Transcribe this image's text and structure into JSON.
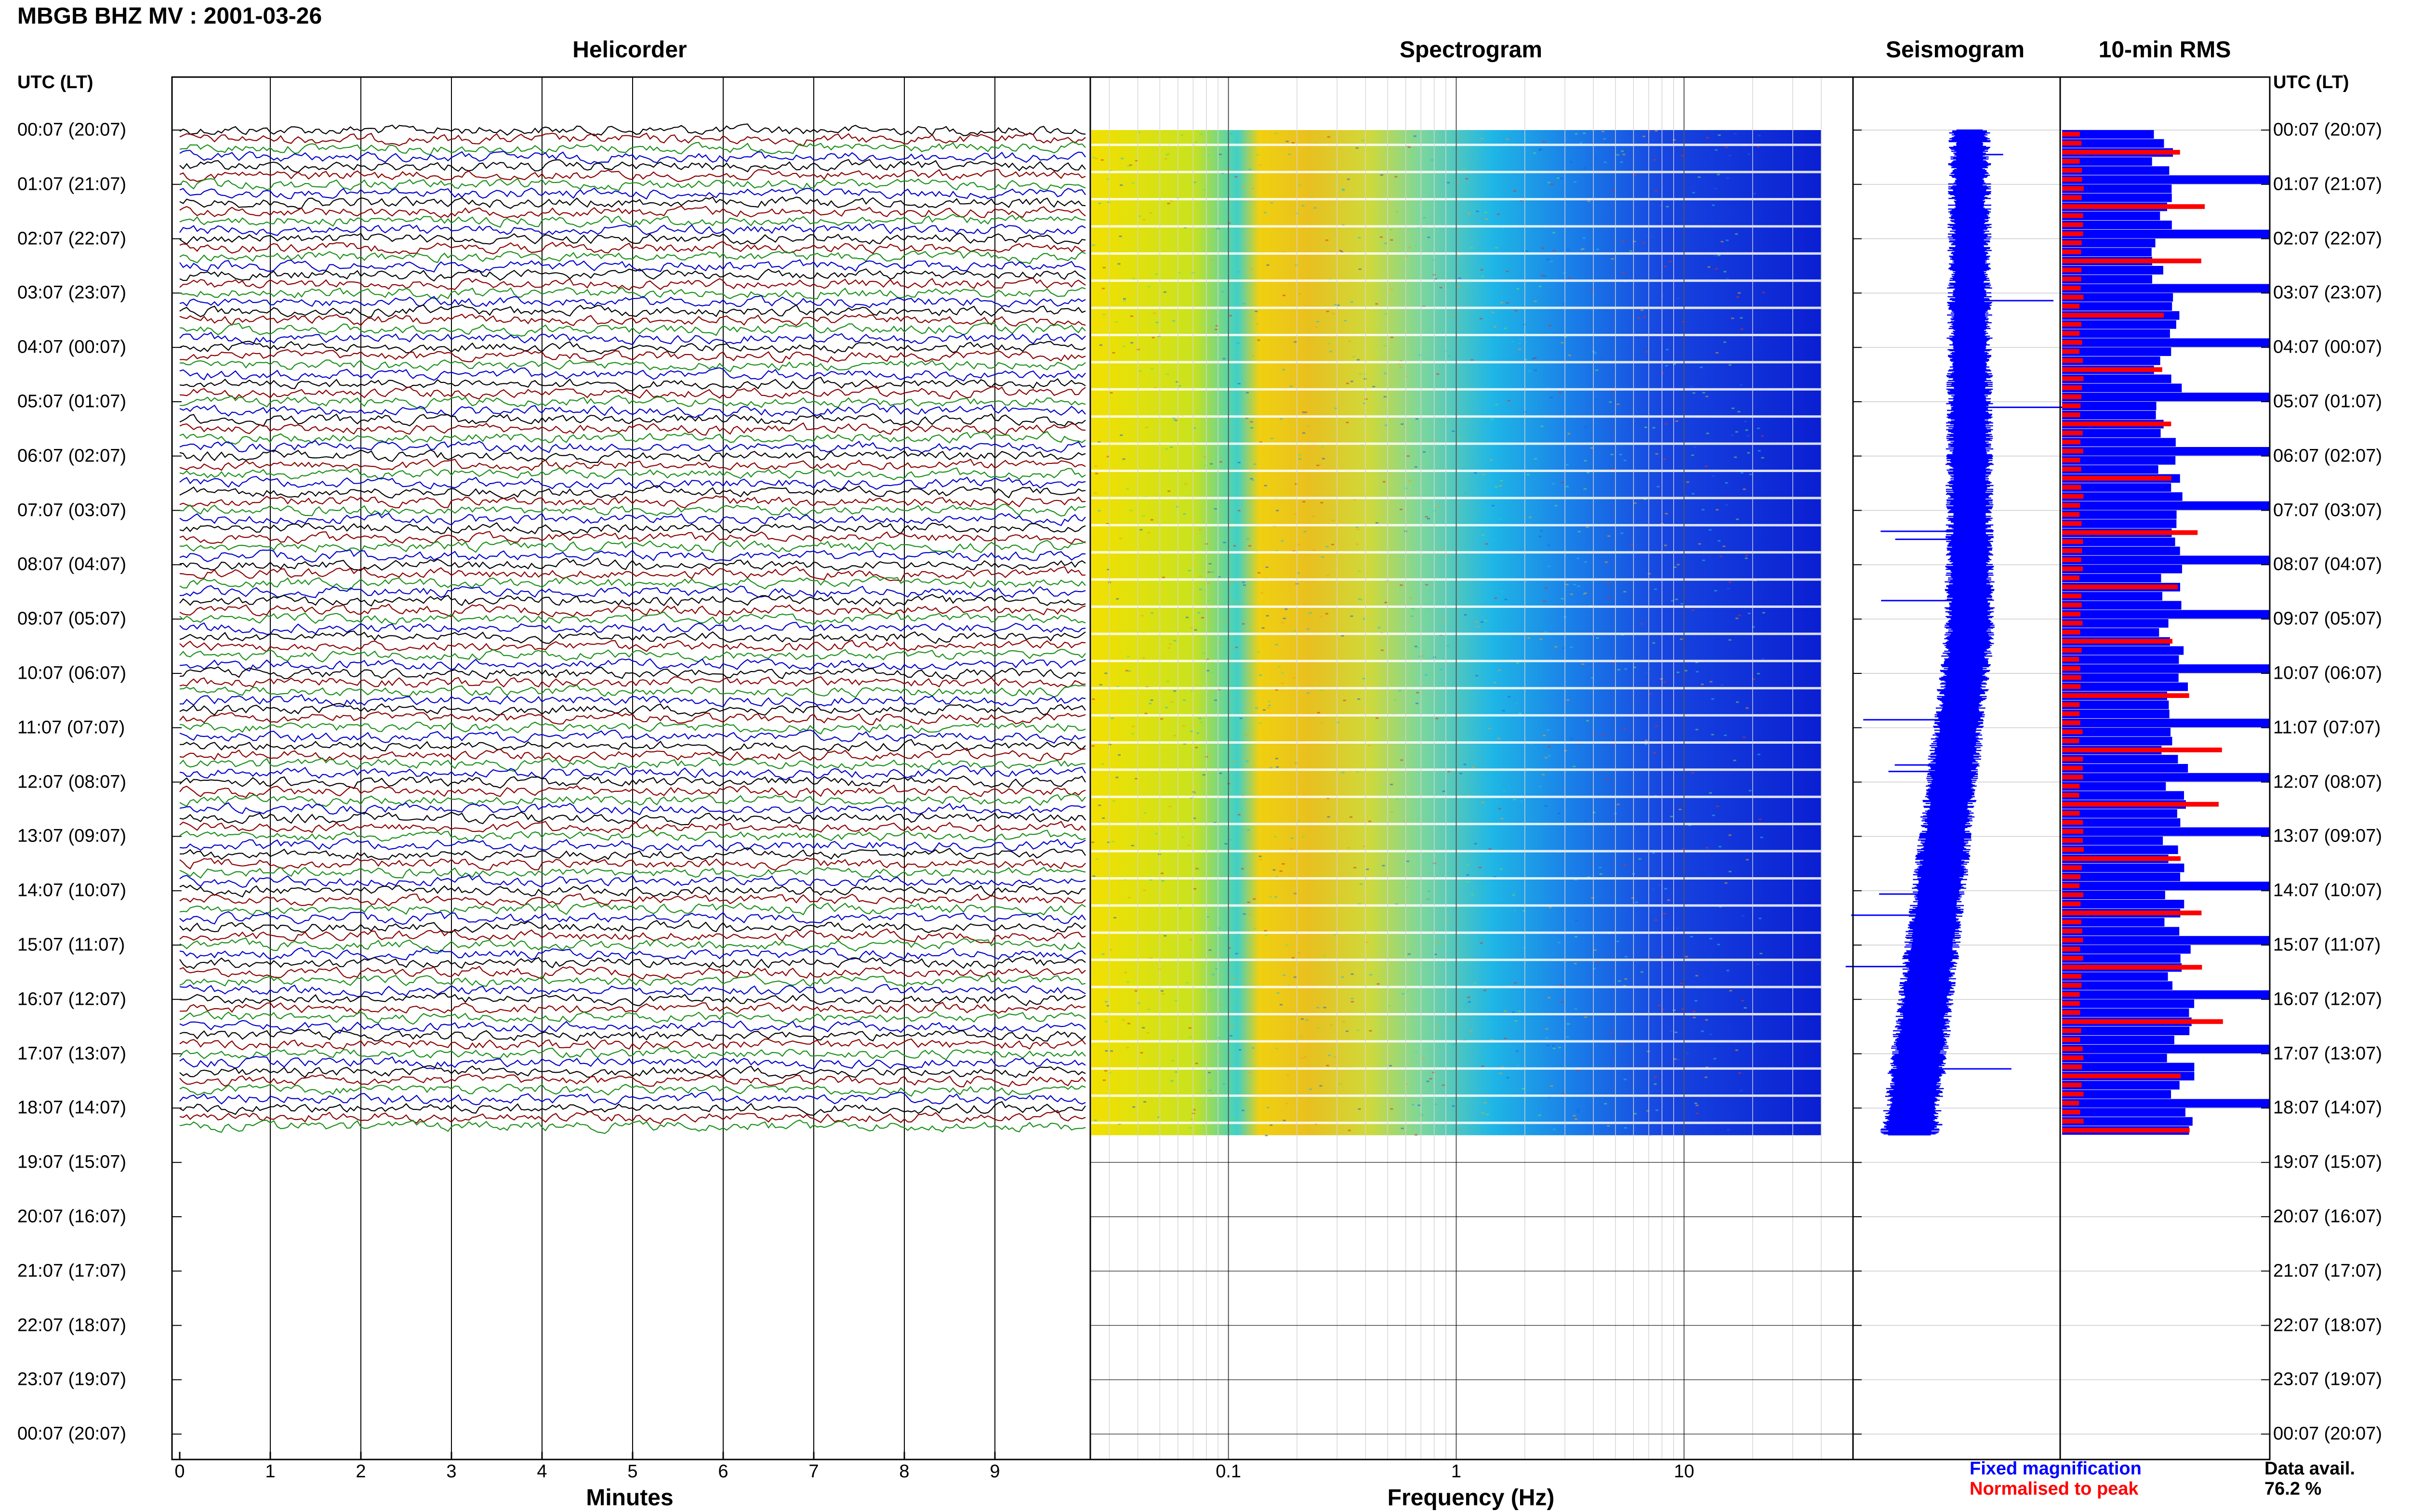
{
  "title": "MBGB BHZ MV : 2001-03-26",
  "panels": {
    "helicorder": "Helicorder",
    "spectrogram": "Spectrogram",
    "seismogram": "Seismogram",
    "rms": "10-min RMS"
  },
  "time_axis_label": "UTC (LT)",
  "colors": {
    "trace_cycle": [
      "#000000",
      "#8b0000",
      "#1a8f1a",
      "#0000cd"
    ],
    "fixed": "#0000ff",
    "normalised": "#ff0000"
  },
  "chart_data": [
    {
      "type": "line",
      "title": "Helicorder",
      "xlabel": "Minutes",
      "xlim": [
        0,
        10
      ],
      "x_ticks": [
        "0",
        "1",
        "2",
        "3",
        "4",
        "5",
        "6",
        "7",
        "8",
        "9"
      ],
      "row_labels": [
        "00:07 (20:07)",
        "01:07 (21:07)",
        "02:07 (22:07)",
        "03:07 (23:07)",
        "04:07 (00:07)",
        "05:07 (01:07)",
        "06:07 (02:07)",
        "07:07 (03:07)",
        "08:07 (04:07)",
        "09:07 (05:07)",
        "10:07 (06:07)",
        "11:07 (07:07)",
        "12:07 (08:07)",
        "13:07 (09:07)",
        "14:07 (10:07)",
        "15:07 (11:07)",
        "16:07 (12:07)",
        "17:07 (13:07)",
        "18:07 (14:07)",
        "19:07 (15:07)",
        "20:07 (16:07)",
        "21:07 (17:07)",
        "22:07 (18:07)",
        "23:07 (19:07)",
        "00:07 (20:07)"
      ],
      "traces_per_hour": 6,
      "data_hours": 18.5
    },
    {
      "type": "heatmap",
      "title": "Spectrogram",
      "xlabel": "Frequency (Hz)",
      "x_scale": "log",
      "xlim": [
        0.025,
        40
      ],
      "x_ticks": [
        "0.1",
        "1",
        "10"
      ]
    },
    {
      "type": "line",
      "title": "Seismogram",
      "data_hours": 18.5
    },
    {
      "type": "bar",
      "title": "10-min RMS",
      "series": [
        {
          "name": "Fixed magnification",
          "color": "#0000ff"
        },
        {
          "name": "Normalised to peak",
          "color": "#ff0000"
        }
      ],
      "data_hours": 18.5
    }
  ],
  "data_availability": {
    "label": "Data avail.",
    "value": "76.2 %"
  }
}
